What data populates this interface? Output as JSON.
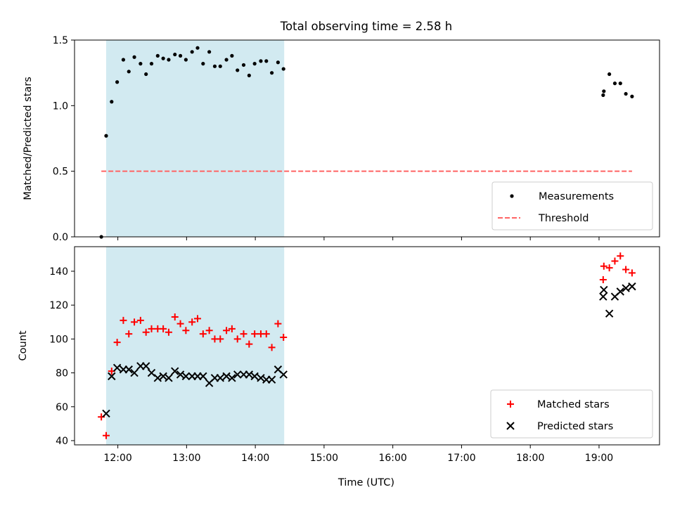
{
  "figure": {
    "title": "Total observing time = 2.58 h",
    "shaded_interval": {
      "start": 11.83,
      "end": 14.42
    },
    "colors": {
      "shade": "#add8e6",
      "threshold": "#ff6464",
      "matched": "#ff0000",
      "predicted": "#000000",
      "measurements": "#000000"
    },
    "xaxis": {
      "label": "Time (UTC)",
      "range": [
        11.37,
        19.88
      ]
    }
  },
  "chart_data": [
    {
      "type": "scatter",
      "panel": "top",
      "title": "Total observing time = 2.58 h",
      "xlabel": "",
      "ylabel": "Matched/Predicted stars",
      "xlim": [
        11.37,
        19.88
      ],
      "ylim": [
        0.0,
        1.5
      ],
      "yticks": [
        0.0,
        0.5,
        1.0,
        1.5
      ],
      "ytick_labels": [
        "0.0",
        "0.5",
        "1.0",
        "1.5"
      ],
      "grid": false,
      "legend_position": "lower right",
      "series": [
        {
          "name": "Measurements",
          "kind": "points",
          "x": [
            11.76,
            11.83,
            11.91,
            11.99,
            12.08,
            12.16,
            12.24,
            12.33,
            12.41,
            12.49,
            12.58,
            12.66,
            12.74,
            12.83,
            12.91,
            12.99,
            13.08,
            13.16,
            13.24,
            13.33,
            13.41,
            13.49,
            13.58,
            13.66,
            13.74,
            13.83,
            13.91,
            13.99,
            14.08,
            14.16,
            14.24,
            14.33,
            14.41,
            19.06,
            19.07,
            19.15,
            19.23,
            19.31,
            19.39,
            19.48
          ],
          "y": [
            0.0,
            0.77,
            1.03,
            1.18,
            1.35,
            1.26,
            1.37,
            1.32,
            1.24,
            1.32,
            1.38,
            1.36,
            1.35,
            1.39,
            1.38,
            1.35,
            1.41,
            1.44,
            1.32,
            1.41,
            1.3,
            1.3,
            1.35,
            1.38,
            1.27,
            1.31,
            1.23,
            1.32,
            1.34,
            1.34,
            1.25,
            1.33,
            1.28,
            1.08,
            1.11,
            1.24,
            1.17,
            1.17,
            1.09,
            1.07
          ]
        },
        {
          "name": "Threshold",
          "kind": "dashed-line",
          "x": [
            11.76,
            19.48
          ],
          "y": [
            0.5,
            0.5
          ]
        }
      ]
    },
    {
      "type": "scatter",
      "panel": "bottom",
      "xlabel": "Time (UTC)",
      "ylabel": "Count",
      "xlim": [
        11.37,
        19.88
      ],
      "ylim": [
        37.5,
        154.5
      ],
      "xticks": [
        12,
        13,
        14,
        15,
        16,
        17,
        18,
        19
      ],
      "xtick_labels": [
        "12:00",
        "13:00",
        "14:00",
        "15:00",
        "16:00",
        "17:00",
        "18:00",
        "19:00"
      ],
      "yticks": [
        40,
        60,
        80,
        100,
        120,
        140
      ],
      "ytick_labels": [
        "40",
        "60",
        "80",
        "100",
        "120",
        "140"
      ],
      "grid": false,
      "legend_position": "lower right",
      "series": [
        {
          "name": "Matched stars",
          "kind": "plus",
          "x": [
            11.76,
            11.83,
            11.91,
            11.99,
            12.08,
            12.16,
            12.24,
            12.33,
            12.41,
            12.49,
            12.58,
            12.66,
            12.74,
            12.83,
            12.91,
            12.99,
            13.08,
            13.16,
            13.24,
            13.33,
            13.41,
            13.49,
            13.58,
            13.66,
            13.74,
            13.83,
            13.91,
            13.99,
            14.08,
            14.16,
            14.24,
            14.33,
            14.41,
            19.06,
            19.07,
            19.15,
            19.23,
            19.31,
            19.39,
            19.48
          ],
          "y": [
            54,
            43,
            81,
            98,
            111,
            103,
            110,
            111,
            104,
            106,
            106,
            106,
            104,
            113,
            109,
            105,
            110,
            112,
            103,
            105,
            100,
            100,
            105,
            106,
            100,
            103,
            97,
            103,
            103,
            103,
            95,
            109,
            101,
            135,
            143,
            142,
            146,
            149,
            141,
            139
          ]
        },
        {
          "name": "Predicted stars",
          "kind": "x",
          "x": [
            11.83,
            11.91,
            11.99,
            12.08,
            12.16,
            12.24,
            12.33,
            12.41,
            12.49,
            12.58,
            12.66,
            12.74,
            12.83,
            12.91,
            12.99,
            13.08,
            13.16,
            13.24,
            13.33,
            13.41,
            13.49,
            13.58,
            13.66,
            13.74,
            13.83,
            13.91,
            13.99,
            14.08,
            14.16,
            14.24,
            14.33,
            14.41,
            19.06,
            19.07,
            19.15,
            19.23,
            19.31,
            19.39,
            19.48
          ],
          "y": [
            56,
            78,
            83,
            82,
            82,
            80,
            84,
            84,
            80,
            77,
            78,
            77,
            81,
            79,
            78,
            78,
            78,
            78,
            74,
            77,
            77,
            78,
            77,
            79,
            79,
            79,
            78,
            77,
            76,
            76,
            82,
            79,
            125,
            129,
            115,
            125,
            128,
            130,
            131
          ]
        }
      ]
    }
  ]
}
